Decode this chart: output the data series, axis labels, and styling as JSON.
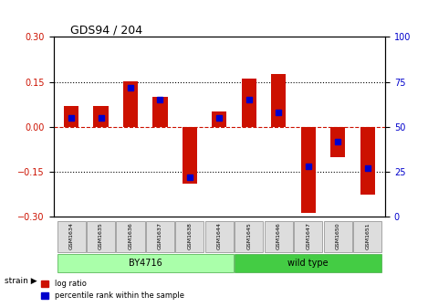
{
  "title": "GDS94 / 204",
  "samples": [
    "GSM1634",
    "GSM1635",
    "GSM1636",
    "GSM1637",
    "GSM1638",
    "GSM1644",
    "GSM1645",
    "GSM1646",
    "GSM1647",
    "GSM1650",
    "GSM1651"
  ],
  "log_ratio": [
    0.07,
    0.07,
    0.152,
    0.1,
    -0.19,
    0.05,
    0.16,
    0.175,
    -0.285,
    -0.1,
    -0.225
  ],
  "percentile": [
    55,
    55,
    72,
    65,
    22,
    55,
    65,
    58,
    28,
    42,
    27
  ],
  "ylim": [
    -0.3,
    0.3
  ],
  "yticks_left": [
    -0.3,
    -0.15,
    0.0,
    0.15,
    0.3
  ],
  "yticks_right": [
    0,
    25,
    50,
    75,
    100
  ],
  "bar_color": "#CC1100",
  "blue_color": "#0000CC",
  "zero_line_color": "#CC1100",
  "dotted_line_color": "#000000",
  "bg_color": "#FFFFFF",
  "plot_bg": "#FFFFFF",
  "group1_label": "BY4716",
  "group2_label": "wild type",
  "group1_indices": [
    0,
    1,
    2,
    3,
    4,
    5
  ],
  "group2_indices": [
    6,
    7,
    8,
    9,
    10
  ],
  "group1_color": "#AAFFAA",
  "group2_color": "#44CC44",
  "strain_label": "strain",
  "legend_log": "log ratio",
  "legend_pct": "percentile rank within the sample",
  "bar_width": 0.5
}
